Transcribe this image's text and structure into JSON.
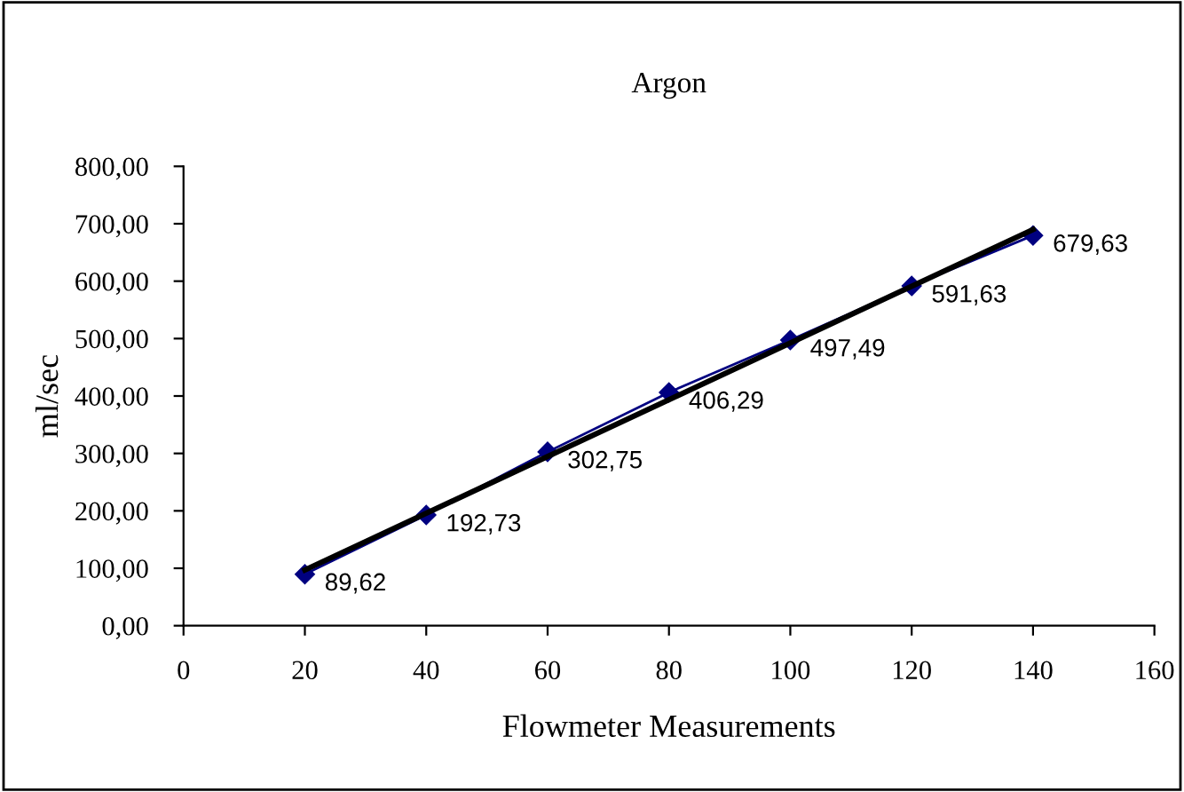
{
  "chart_data": {
    "type": "line",
    "title": "Argon",
    "xlabel": "Flowmeter Measurements",
    "ylabel": "ml/sec",
    "xlim": [
      0,
      160
    ],
    "xticks": [
      0,
      20,
      40,
      60,
      80,
      100,
      120,
      140,
      160
    ],
    "ylim": [
      0,
      800
    ],
    "yticks": [
      {
        "value": 0,
        "label": "0,00"
      },
      {
        "value": 100,
        "label": "100,00"
      },
      {
        "value": 200,
        "label": "200,00"
      },
      {
        "value": 300,
        "label": "300,00"
      },
      {
        "value": 400,
        "label": "400,00"
      },
      {
        "value": 500,
        "label": "500,00"
      },
      {
        "value": 600,
        "label": "600,00"
      },
      {
        "value": 700,
        "label": "700,00"
      },
      {
        "value": 800,
        "label": "800,00"
      }
    ],
    "grid": false,
    "legend": false,
    "series": [
      {
        "color": "#000080",
        "marker": "diamond",
        "x": [
          20,
          40,
          60,
          80,
          100,
          120,
          140
        ],
        "values": [
          89.62,
          192.73,
          302.75,
          406.29,
          497.49,
          591.63,
          679.63
        ],
        "value_labels": [
          "89,62",
          "192,73",
          "302,75",
          "406,29",
          "497,49",
          "591,63",
          "679,63"
        ]
      },
      {
        "color": "#000000",
        "marker": "none",
        "x": [
          20,
          140
        ],
        "values": [
          97,
          690
        ]
      }
    ]
  }
}
